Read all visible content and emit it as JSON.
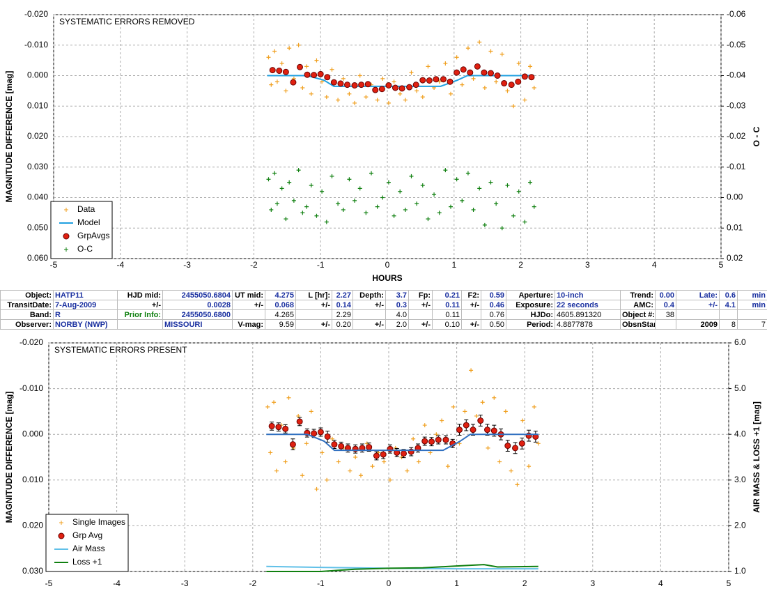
{
  "chart_data": [
    {
      "type": "scatter",
      "annotation": "SYSTEMATIC ERRORS REMOVED",
      "xlabel": "HOURS",
      "ylabel": "MAGNITUDE DIFFERENCE [mag]",
      "y2label": "O - C",
      "xlim": [
        -5,
        5
      ],
      "xticks": [
        -5,
        -4,
        -3,
        -2,
        -1,
        0,
        1,
        2,
        3,
        4,
        5
      ],
      "ylim": [
        -0.02,
        0.06
      ],
      "y_reversed": true,
      "yticks": [
        {
          "value": -0.02,
          "label": "-0.020"
        },
        {
          "value": -0.01,
          "label": "-0.010"
        },
        {
          "value": 0,
          "label": "0.000"
        },
        {
          "value": 0.01,
          "label": "0.010"
        },
        {
          "value": 0.02,
          "label": "0.020"
        },
        {
          "value": 0.03,
          "label": "0.030"
        },
        {
          "value": 0.04,
          "label": "0.040"
        },
        {
          "value": 0.05,
          "label": "0.050"
        },
        {
          "value": 0.06,
          "label": "0.060"
        }
      ],
      "y2lim": [
        -0.06,
        0.02
      ],
      "y2_reversed": true,
      "y2ticks": [
        {
          "value": -0.06,
          "label": "-0.06"
        },
        {
          "value": -0.05,
          "label": "-0.05"
        },
        {
          "value": -0.04,
          "label": "-0.04"
        },
        {
          "value": -0.03,
          "label": "-0.03"
        },
        {
          "value": -0.02,
          "label": "-0.02"
        },
        {
          "value": -0.01,
          "label": "-0.01"
        },
        {
          "value": 0,
          "label": "0.00"
        },
        {
          "value": 0.01,
          "label": "0.01"
        },
        {
          "value": 0.02,
          "label": "0.02"
        }
      ],
      "grid": true,
      "legend": "lower left",
      "series": [
        {
          "name": "Data",
          "color": "#f0a020",
          "marker": "plus",
          "x": [
            -1.78,
            -1.74,
            -1.69,
            -1.65,
            -1.58,
            -1.52,
            -1.47,
            -1.4,
            -1.33,
            -1.27,
            -1.21,
            -1.14,
            -1.06,
            -0.98,
            -0.91,
            -0.83,
            -0.74,
            -0.66,
            -0.57,
            -0.49,
            -0.41,
            -0.32,
            -0.24,
            -0.15,
            -0.07,
            0.02,
            0.1,
            0.19,
            0.27,
            0.36,
            0.44,
            0.53,
            0.61,
            0.7,
            0.78,
            0.87,
            0.95,
            1.04,
            1.12,
            1.21,
            1.29,
            1.38,
            1.46,
            1.55,
            1.63,
            1.72,
            1.8,
            1.89,
            1.97,
            2.06,
            2.14,
            2.2
          ],
          "values": [
            -0.006,
            0.003,
            -0.008,
            0.002,
            -0.004,
            0.005,
            -0.009,
            0.001,
            -0.01,
            0.004,
            -0.003,
            0.006,
            -0.005,
            0.002,
            0.007,
            -0.002,
            0.008,
            0.001,
            0.006,
            0.009,
            0.0,
            0.007,
            0.003,
            0.008,
            0.001,
            0.009,
            0.002,
            0.006,
            0.008,
            -0.001,
            0.005,
            0.007,
            -0.003,
            0.004,
            0.002,
            -0.004,
            0.006,
            -0.006,
            0.003,
            -0.009,
            0.001,
            -0.011,
            0.004,
            -0.008,
            0.002,
            -0.007,
            0.005,
            0.01,
            -0.004,
            0.008,
            -0.003,
            0.004
          ]
        },
        {
          "name": "Model",
          "color": "#20a0e0",
          "marker": "line",
          "x": [
            -1.8,
            -1.2,
            -0.95,
            -0.8,
            0.8,
            1.05,
            1.2,
            2.2
          ],
          "values": [
            0,
            0,
            0.0015,
            0.0035,
            0.0035,
            0.0015,
            0,
            0
          ]
        },
        {
          "name": "GrpAvgs",
          "color": "#e02010",
          "marker": "circle",
          "x": [
            -1.72,
            -1.62,
            -1.52,
            -1.41,
            -1.31,
            -1.2,
            -1.1,
            -1.0,
            -0.9,
            -0.8,
            -0.7,
            -0.6,
            -0.49,
            -0.39,
            -0.29,
            -0.18,
            -0.08,
            0.02,
            0.12,
            0.22,
            0.33,
            0.43,
            0.53,
            0.63,
            0.73,
            0.84,
            0.94,
            1.04,
            1.14,
            1.24,
            1.35,
            1.45,
            1.55,
            1.65,
            1.75,
            1.86,
            1.96,
            2.06,
            2.16
          ],
          "values": [
            -0.0018,
            -0.0016,
            -0.0012,
            0.0022,
            -0.0028,
            -0.0003,
            -0.0002,
            -0.0005,
            0.0005,
            0.0022,
            0.0026,
            0.003,
            0.0032,
            0.003,
            0.0028,
            0.0047,
            0.0044,
            0.0032,
            0.004,
            0.0042,
            0.0038,
            0.003,
            0.0015,
            0.0016,
            0.0012,
            0.0012,
            0.002,
            -0.001,
            -0.002,
            -0.001,
            -0.003,
            -0.001,
            -0.0008,
            0.0,
            0.0025,
            0.003,
            0.002,
            0.0003,
            0.0005
          ]
        },
        {
          "name": "O-C",
          "color": "#108010",
          "marker": "plus",
          "axis": "y2",
          "x": [
            -1.78,
            -1.74,
            -1.69,
            -1.65,
            -1.58,
            -1.52,
            -1.47,
            -1.4,
            -1.33,
            -1.27,
            -1.21,
            -1.14,
            -1.06,
            -0.98,
            -0.91,
            -0.83,
            -0.74,
            -0.66,
            -0.57,
            -0.49,
            -0.41,
            -0.32,
            -0.24,
            -0.15,
            -0.07,
            0.02,
            0.1,
            0.19,
            0.27,
            0.36,
            0.44,
            0.53,
            0.61,
            0.7,
            0.78,
            0.87,
            0.95,
            1.04,
            1.12,
            1.21,
            1.29,
            1.38,
            1.46,
            1.55,
            1.63,
            1.72,
            1.8,
            1.89,
            1.97,
            2.06,
            2.14,
            2.2
          ],
          "values": [
            -0.006,
            0.004,
            -0.008,
            0.002,
            -0.003,
            0.007,
            -0.005,
            0.001,
            -0.009,
            0.005,
            0.003,
            -0.004,
            0.006,
            -0.002,
            0.008,
            -0.007,
            0.002,
            0.004,
            -0.006,
            0.001,
            -0.003,
            0.005,
            -0.008,
            0.003,
            0.0,
            -0.005,
            0.006,
            -0.002,
            0.004,
            -0.007,
            0.002,
            -0.004,
            0.007,
            -0.001,
            0.005,
            -0.009,
            0.003,
            -0.006,
            0.001,
            -0.008,
            0.004,
            -0.003,
            0.009,
            -0.005,
            0.002,
            0.01,
            -0.004,
            0.006,
            -0.002,
            0.008,
            -0.005,
            0.003
          ]
        }
      ]
    },
    {
      "type": "scatter",
      "annotation": "SYSTEMATIC ERRORS PRESENT",
      "ylabel": "MAGNITUDE DIFFERENCE [mag]",
      "y2label": "AIR MASS & LOSS +1 [mag]",
      "xlim": [
        -5,
        5
      ],
      "xticks": [
        -5,
        -4,
        -3,
        -2,
        -1,
        0,
        1,
        2,
        3,
        4,
        5
      ],
      "ylim": [
        -0.02,
        0.03
      ],
      "y_reversed": true,
      "yticks": [
        {
          "value": -0.02,
          "label": "-0.020"
        },
        {
          "value": -0.01,
          "label": "-0.010"
        },
        {
          "value": 0,
          "label": "0.000"
        },
        {
          "value": 0.01,
          "label": "0.010"
        },
        {
          "value": 0.02,
          "label": "0.020"
        },
        {
          "value": 0.03,
          "label": "0.030"
        }
      ],
      "y2lim": [
        1,
        6
      ],
      "y2_reversed": false,
      "y2ticks": [
        {
          "value": 1,
          "label": "1.0"
        },
        {
          "value": 2,
          "label": "2.0"
        },
        {
          "value": 3,
          "label": "3.0"
        },
        {
          "value": 4,
          "label": "4.0"
        },
        {
          "value": 5,
          "label": "5.0"
        },
        {
          "value": 6,
          "label": "6.0"
        }
      ],
      "grid": true,
      "legend": "lower left",
      "series": [
        {
          "name": "Single Images",
          "color": "#f0a020",
          "marker": "plus",
          "x": [
            -1.78,
            -1.74,
            -1.69,
            -1.65,
            -1.58,
            -1.52,
            -1.47,
            -1.4,
            -1.33,
            -1.27,
            -1.21,
            -1.14,
            -1.06,
            -0.98,
            -0.91,
            -0.83,
            -0.74,
            -0.66,
            -0.57,
            -0.49,
            -0.41,
            -0.32,
            -0.24,
            -0.15,
            -0.07,
            0.02,
            0.1,
            0.19,
            0.27,
            0.36,
            0.44,
            0.53,
            0.61,
            0.7,
            0.78,
            0.87,
            0.95,
            1.04,
            1.12,
            1.21,
            1.29,
            1.38,
            1.46,
            1.55,
            1.63,
            1.72,
            1.8,
            1.89,
            1.97,
            2.06,
            2.14,
            2.2
          ],
          "values": [
            -0.006,
            0.004,
            -0.007,
            0.008,
            -0.002,
            0.006,
            -0.008,
            0.003,
            -0.004,
            0.009,
            0.002,
            -0.005,
            0.012,
            0.004,
            0.01,
            0.001,
            0.006,
            0.003,
            0.008,
            0.005,
            0.009,
            0.002,
            0.007,
            0.004,
            0.006,
            0.01,
            0.003,
            0.005,
            0.008,
            0.001,
            0.006,
            -0.002,
            0.004,
            0.0,
            -0.003,
            0.007,
            -0.006,
            0.002,
            -0.005,
            -0.014,
            -0.004,
            -0.007,
            0.003,
            -0.008,
            0.006,
            -0.005,
            0.008,
            0.011,
            -0.003,
            0.007,
            -0.006,
            0.002
          ]
        },
        {
          "name": "Grp Avg",
          "color": "#e02010",
          "marker": "circle",
          "x": [
            -1.72,
            -1.62,
            -1.52,
            -1.41,
            -1.31,
            -1.2,
            -1.1,
            -1.0,
            -0.9,
            -0.8,
            -0.7,
            -0.6,
            -0.49,
            -0.39,
            -0.29,
            -0.18,
            -0.08,
            0.02,
            0.12,
            0.22,
            0.33,
            0.43,
            0.53,
            0.63,
            0.73,
            0.84,
            0.94,
            1.04,
            1.14,
            1.24,
            1.35,
            1.45,
            1.55,
            1.65,
            1.75,
            1.86,
            1.96,
            2.06,
            2.16
          ],
          "values": [
            -0.0018,
            -0.0016,
            -0.0012,
            0.0022,
            -0.0028,
            -0.0003,
            -0.0002,
            -0.0005,
            0.0005,
            0.0022,
            0.0026,
            0.003,
            0.0032,
            0.003,
            0.0028,
            0.0047,
            0.0044,
            0.0032,
            0.004,
            0.0042,
            0.0038,
            0.003,
            0.0015,
            0.0016,
            0.0012,
            0.0012,
            0.002,
            -0.001,
            -0.002,
            -0.001,
            -0.003,
            -0.001,
            -0.0008,
            0.0,
            0.0025,
            0.003,
            0.002,
            0.0003,
            0.0005
          ],
          "errors": [
            0.0009,
            0.0009,
            0.0009,
            0.0012,
            0.0009,
            0.0009,
            0.0009,
            0.0009,
            0.0012,
            0.0009,
            0.0009,
            0.0009,
            0.0009,
            0.0009,
            0.0009,
            0.0009,
            0.0009,
            0.0009,
            0.0009,
            0.0009,
            0.0009,
            0.0009,
            0.0009,
            0.0009,
            0.0009,
            0.0009,
            0.0009,
            0.0012,
            0.0012,
            0.0012,
            0.0012,
            0.0012,
            0.0012,
            0.0012,
            0.0012,
            0.0012,
            0.0012,
            0.0012,
            0.0012
          ]
        },
        {
          "color": "#3070c0",
          "marker": "line",
          "x": [
            -1.8,
            -1.2,
            -0.95,
            -0.8,
            0.8,
            1.05,
            1.2,
            2.2
          ],
          "values": [
            0,
            0,
            0.0015,
            0.0035,
            0.0035,
            0.0015,
            0,
            0
          ]
        },
        {
          "name": "Air Mass",
          "color": "#60c0e8",
          "marker": "line",
          "axis": "y2",
          "x": [
            -1.8,
            -1.0,
            0,
            1.0,
            2.2
          ],
          "values": [
            1.11,
            1.09,
            1.07,
            1.06,
            1.06
          ]
        },
        {
          "name": "Loss +1",
          "color": "#108010",
          "marker": "line",
          "axis": "y2",
          "x": [
            -1.8,
            -1.0,
            -0.5,
            0,
            0.5,
            1.0,
            1.4,
            1.6,
            2.2
          ],
          "values": [
            1.0,
            1.0,
            1.05,
            1.07,
            1.08,
            1.12,
            1.15,
            1.1,
            1.11
          ]
        }
      ]
    }
  ],
  "table": {
    "rows": [
      [
        "Object:",
        "HATP11",
        "HJD mid:",
        "2455050.6804",
        "UT mid:",
        "4.275",
        "L [hr]:",
        "2.27",
        "Depth:",
        "3.7",
        "Fp:",
        "0.21",
        "F2:",
        "0.59",
        "Aperture:",
        "10-inch",
        "Trend:",
        "0.00",
        "Late:",
        "0.6",
        "min"
      ],
      [
        "TransitDate:",
        "7-Aug-2009",
        "+/-",
        "0.0028",
        "+/-",
        "0.068",
        "+/-",
        "0.14",
        "+/-",
        "0.3",
        "+/-",
        "0.11",
        "+/-",
        "0.46",
        "Exposure:",
        "22 seconds",
        "AMC:",
        "0.4",
        "+/-",
        "4.1",
        "min"
      ],
      [
        "Band:",
        "R",
        "Prior Info:",
        "2455050.6800",
        null,
        "4.265",
        null,
        "2.29",
        null,
        "4.0",
        null,
        "0.11",
        null,
        "0.76",
        "HJDo:",
        "4605.891320",
        "Object #:",
        "38",
        null,
        null,
        null
      ],
      [
        "Observer:",
        "NORBY (NWP)",
        null,
        "MISSOURI",
        "V-mag:",
        "9.59",
        "+/-",
        "0.20",
        "+/-",
        "2.0",
        "+/-",
        "0.10",
        "+/-",
        "0.50",
        "Period:",
        "4.8877878",
        "ObsnStartDate:",
        null,
        "2009",
        "8",
        "7"
      ]
    ]
  }
}
